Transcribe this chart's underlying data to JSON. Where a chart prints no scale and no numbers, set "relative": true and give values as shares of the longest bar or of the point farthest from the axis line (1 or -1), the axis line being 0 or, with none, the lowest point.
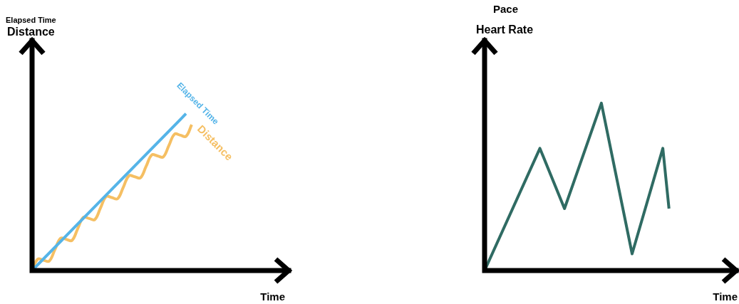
{
  "chart_data": [
    {
      "type": "line",
      "relative": true,
      "xlabel": "Time",
      "ylabel": "Distance",
      "annotations": [
        "Elapsed Time"
      ],
      "marker": "none",
      "categories": [
        null,
        null,
        null,
        null,
        null,
        null,
        null,
        null,
        null,
        null,
        null,
        null,
        null,
        null,
        null,
        null,
        null,
        null,
        null,
        null,
        null,
        null,
        null,
        null,
        null,
        null,
        null,
        null,
        null,
        null,
        null,
        null,
        null,
        null,
        null,
        null,
        null,
        null,
        null,
        null,
        null,
        null,
        null,
        null,
        null
      ],
      "series": [
        {
          "name": "Elapsed Time",
          "color": "#55b4e8",
          "values": [
            0,
            null,
            null,
            null,
            null,
            null,
            null,
            null,
            null,
            null,
            null,
            null,
            null,
            null,
            null,
            null,
            null,
            null,
            null,
            null,
            null,
            null,
            null,
            null,
            null,
            null,
            null,
            1,
            null,
            null,
            null,
            null,
            null,
            null,
            null,
            null,
            null,
            null,
            null,
            null,
            null,
            null,
            null,
            null,
            null
          ]
        },
        {
          "name": "Distance",
          "color": "#f5bf63",
          "values": [
            0,
            0.073,
            0.066,
            0.06,
            0.133,
            0.206,
            0.199,
            0.192,
            0.266,
            0.339,
            0.332,
            0.325,
            0.399,
            0.472,
            0.465,
            0.458,
            0.531,
            0.605,
            0.598,
            0.591,
            0.664,
            0.737,
            0.731,
            0.724,
            0.797,
            0.87,
            0.863,
            0.856,
            0.93,
            null,
            null,
            null,
            null,
            null,
            null,
            null,
            null,
            null,
            null,
            null,
            null,
            null,
            null,
            null,
            null
          ]
        }
      ]
    },
    {
      "type": "line",
      "relative": true,
      "xlabel": "Time",
      "ylabel": "Heart Rate",
      "annotations": [
        "Pace"
      ],
      "marker": "none",
      "categories": [
        null,
        null,
        null,
        null,
        null,
        null,
        null,
        null,
        null,
        null,
        null,
        null,
        null,
        null,
        null,
        null,
        null,
        null,
        null,
        null,
        null,
        null,
        null,
        null,
        null,
        null,
        null,
        null,
        null,
        null,
        null,
        null,
        null,
        null,
        null,
        null,
        null,
        null,
        null,
        null,
        null
      ],
      "series": [
        {
          "color": "#2f6b63",
          "values": [
            0,
            null,
            null,
            null,
            null,
            null,
            null,
            null,
            null,
            0.73,
            null,
            null,
            null,
            0.37,
            null,
            null,
            null,
            null,
            null,
            1,
            null,
            null,
            null,
            null,
            0.1,
            null,
            null,
            null,
            null,
            0.73,
            0.37,
            null,
            null,
            null,
            null,
            null,
            null,
            null,
            null,
            null,
            null
          ]
        }
      ]
    }
  ]
}
